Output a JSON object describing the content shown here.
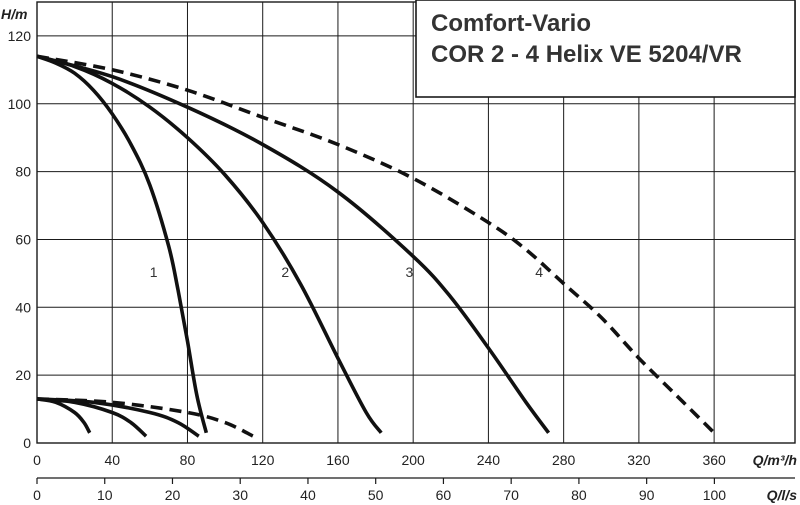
{
  "chart_data": {
    "type": "line",
    "title": "Comfort-Vario",
    "subtitle": "COR 2 - 4 Helix VE 5204/VR",
    "ylabel": "H/m",
    "xlabel": "Q/m³/h",
    "x2label": "Q/l/s",
    "ylim": [
      0,
      130
    ],
    "xlim": [
      0,
      403
    ],
    "x2lim": [
      0,
      111.9
    ],
    "yticks": [
      0,
      20,
      40,
      60,
      80,
      100,
      120
    ],
    "xticks": [
      0,
      40,
      80,
      120,
      160,
      200,
      240,
      280,
      320,
      360
    ],
    "x2ticks": [
      0,
      10,
      20,
      30,
      40,
      50,
      60,
      70,
      80,
      90,
      100
    ],
    "grid": true,
    "series": [
      {
        "name": "1",
        "dashed": false,
        "x": [
          0,
          10,
          20,
          30,
          40,
          50,
          60,
          70,
          75,
          80,
          85,
          90
        ],
        "y": [
          114,
          112,
          109,
          104,
          97,
          88,
          76,
          58,
          45,
          30,
          14,
          3
        ]
      },
      {
        "name": "2",
        "dashed": false,
        "x": [
          0,
          20,
          40,
          60,
          80,
          100,
          120,
          140,
          160,
          175,
          183
        ],
        "y": [
          114,
          111,
          106,
          99,
          90,
          79,
          65,
          47,
          25,
          9,
          3
        ]
      },
      {
        "name": "3",
        "dashed": false,
        "x": [
          0,
          40,
          80,
          120,
          160,
          200,
          220,
          240,
          260,
          272
        ],
        "y": [
          114,
          108,
          99,
          88,
          74,
          55,
          43,
          28,
          12,
          3
        ]
      },
      {
        "name": "4",
        "dashed": true,
        "x": [
          0,
          40,
          80,
          120,
          160,
          200,
          240,
          260,
          280,
          300,
          320,
          340,
          360
        ],
        "y": [
          114,
          110,
          104,
          96,
          88,
          78,
          65,
          57,
          47,
          37,
          25,
          14,
          3
        ]
      },
      {
        "name": "",
        "dashed": false,
        "x": [
          0,
          10,
          20,
          25,
          28
        ],
        "y": [
          13,
          12,
          9,
          6,
          3
        ]
      },
      {
        "name": "",
        "dashed": false,
        "x": [
          0,
          20,
          40,
          50,
          58
        ],
        "y": [
          13,
          12,
          9,
          6,
          2
        ]
      },
      {
        "name": "",
        "dashed": false,
        "x": [
          0,
          30,
          60,
          75,
          86
        ],
        "y": [
          13,
          12,
          9,
          6,
          2
        ]
      },
      {
        "name": "",
        "dashed": true,
        "x": [
          0,
          40,
          80,
          100,
          115
        ],
        "y": [
          13,
          12,
          9,
          6,
          2
        ]
      }
    ],
    "curve_labels": [
      {
        "text": "1",
        "x": 62,
        "y": 49
      },
      {
        "text": "2",
        "x": 132,
        "y": 49
      },
      {
        "text": "3",
        "x": 198,
        "y": 49
      },
      {
        "text": "4",
        "x": 267,
        "y": 49
      }
    ]
  }
}
